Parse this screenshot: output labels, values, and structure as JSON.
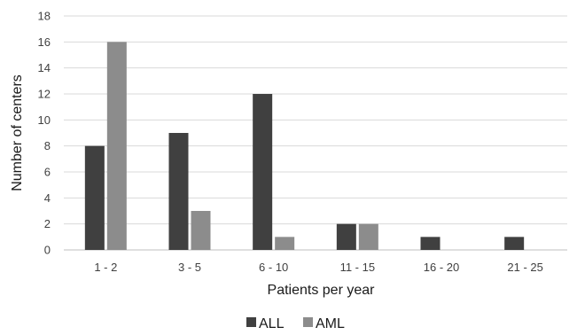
{
  "chart_data": {
    "type": "bar",
    "title": "",
    "xlabel": "Patients per year",
    "ylabel": "Number of centers",
    "categories": [
      "1 - 2",
      "3 - 5",
      "6 - 10",
      "11 - 15",
      "16 - 20",
      "21 - 25"
    ],
    "series": [
      {
        "name": "ALL",
        "values": [
          8,
          9,
          12,
          2,
          1,
          1
        ],
        "color": "#404040"
      },
      {
        "name": "AML",
        "values": [
          16,
          3,
          1,
          2,
          0,
          0
        ],
        "color": "#8c8c8c"
      }
    ],
    "ylim": [
      0,
      18
    ],
    "yticks": [
      0,
      2,
      4,
      6,
      8,
      10,
      12,
      14,
      16,
      18
    ],
    "grid": true,
    "legend_position": "bottom-center"
  }
}
